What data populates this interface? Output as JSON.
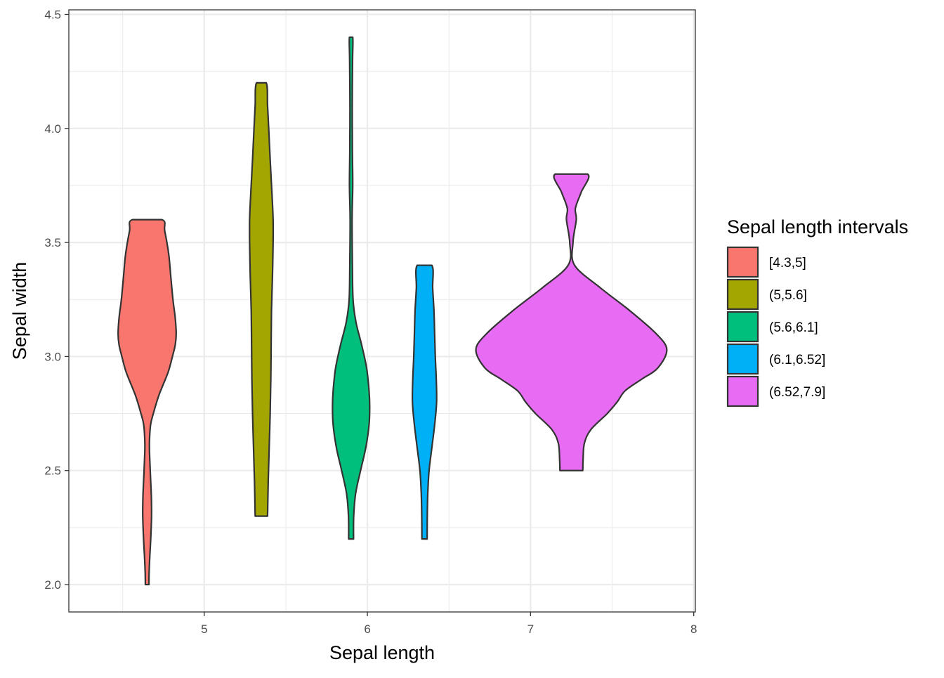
{
  "chart_data": {
    "type": "violin",
    "xlabel": "Sepal length",
    "ylabel": "Sepal width",
    "xlim": [
      4.17,
      8.01
    ],
    "ylim": [
      1.88,
      4.52
    ],
    "x_ticks": [
      5,
      6,
      7,
      8
    ],
    "y_ticks": [
      2.0,
      2.5,
      3.0,
      3.5,
      4.0,
      4.5
    ],
    "y_tick_labels": [
      "2.0",
      "2.5",
      "3.0",
      "3.5",
      "4.0",
      "4.5"
    ],
    "grid": true,
    "legend": {
      "title": "Sepal length intervals",
      "placement": "right"
    },
    "series": [
      {
        "name": "[4.3,5]",
        "color": "#F8766D",
        "x": 4.65,
        "y_min": 2.0,
        "y_max": 3.6,
        "profile": [
          [
            2.0,
            0.011
          ],
          [
            2.05,
            0.012
          ],
          [
            2.12,
            0.016
          ],
          [
            2.2,
            0.022
          ],
          [
            2.3,
            0.027
          ],
          [
            2.38,
            0.026
          ],
          [
            2.45,
            0.022
          ],
          [
            2.55,
            0.016
          ],
          [
            2.62,
            0.014
          ],
          [
            2.7,
            0.021
          ],
          [
            2.75,
            0.038
          ],
          [
            2.83,
            0.072
          ],
          [
            2.93,
            0.128
          ],
          [
            3.0,
            0.155
          ],
          [
            3.05,
            0.172
          ],
          [
            3.1,
            0.178
          ],
          [
            3.17,
            0.172
          ],
          [
            3.25,
            0.158
          ],
          [
            3.35,
            0.145
          ],
          [
            3.45,
            0.132
          ],
          [
            3.55,
            0.108
          ],
          [
            3.6,
            0.09
          ]
        ]
      },
      {
        "name": "(5,5.6]",
        "color": "#A3A500",
        "x": 5.35,
        "y_min": 2.3,
        "y_max": 4.2,
        "profile": [
          [
            2.3,
            0.038
          ],
          [
            2.45,
            0.042
          ],
          [
            2.6,
            0.048
          ],
          [
            2.75,
            0.054
          ],
          [
            2.9,
            0.058
          ],
          [
            3.05,
            0.06
          ],
          [
            3.2,
            0.062
          ],
          [
            3.35,
            0.068
          ],
          [
            3.5,
            0.072
          ],
          [
            3.6,
            0.072
          ],
          [
            3.7,
            0.066
          ],
          [
            3.85,
            0.055
          ],
          [
            4.0,
            0.045
          ],
          [
            4.1,
            0.038
          ],
          [
            4.2,
            0.03
          ]
        ]
      },
      {
        "name": "(5.6,6.1]",
        "color": "#00BF7D",
        "x": 5.9,
        "y_min": 2.2,
        "y_max": 4.4,
        "profile": [
          [
            2.2,
            0.015
          ],
          [
            2.3,
            0.016
          ],
          [
            2.4,
            0.028
          ],
          [
            2.5,
            0.058
          ],
          [
            2.6,
            0.09
          ],
          [
            2.7,
            0.11
          ],
          [
            2.78,
            0.114
          ],
          [
            2.85,
            0.11
          ],
          [
            2.95,
            0.095
          ],
          [
            3.05,
            0.065
          ],
          [
            3.15,
            0.03
          ],
          [
            3.25,
            0.012
          ],
          [
            3.4,
            0.008
          ],
          [
            3.6,
            0.006
          ],
          [
            3.75,
            0.01
          ],
          [
            3.9,
            0.008
          ],
          [
            4.1,
            0.007
          ],
          [
            4.3,
            0.009
          ],
          [
            4.4,
            0.01
          ]
        ]
      },
      {
        "name": "(6.1,6.52]",
        "color": "#00B0F6",
        "x": 6.35,
        "y_min": 2.2,
        "y_max": 3.4,
        "profile": [
          [
            2.2,
            0.016
          ],
          [
            2.3,
            0.017
          ],
          [
            2.4,
            0.02
          ],
          [
            2.5,
            0.028
          ],
          [
            2.6,
            0.045
          ],
          [
            2.7,
            0.062
          ],
          [
            2.8,
            0.074
          ],
          [
            2.9,
            0.072
          ],
          [
            3.0,
            0.066
          ],
          [
            3.1,
            0.062
          ],
          [
            3.2,
            0.058
          ],
          [
            3.3,
            0.05
          ],
          [
            3.4,
            0.045
          ]
        ]
      },
      {
        "name": "(6.52,7.9]",
        "color": "#E76BF3",
        "x": 7.25,
        "y_min": 2.5,
        "y_max": 3.8,
        "profile": [
          [
            2.5,
            0.07
          ],
          [
            2.55,
            0.072
          ],
          [
            2.62,
            0.08
          ],
          [
            2.68,
            0.12
          ],
          [
            2.75,
            0.22
          ],
          [
            2.8,
            0.28
          ],
          [
            2.85,
            0.33
          ],
          [
            2.9,
            0.43
          ],
          [
            2.95,
            0.53
          ],
          [
            3.03,
            0.585
          ],
          [
            3.1,
            0.52
          ],
          [
            3.2,
            0.36
          ],
          [
            3.3,
            0.18
          ],
          [
            3.4,
            0.02
          ],
          [
            3.5,
            0.01
          ],
          [
            3.6,
            0.03
          ],
          [
            3.65,
            0.025
          ],
          [
            3.72,
            0.06
          ],
          [
            3.8,
            0.1
          ]
        ]
      }
    ]
  }
}
